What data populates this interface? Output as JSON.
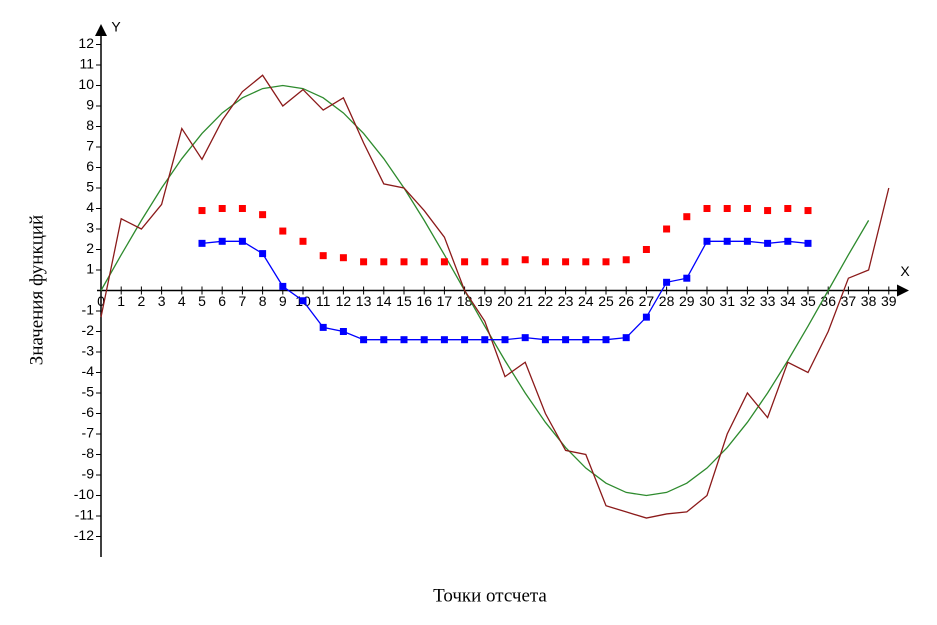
{
  "chart_data": {
    "type": "line",
    "x_label": "Точки отсчета",
    "y_label": "Значения функций",
    "x_axis_letter": "X",
    "y_axis_letter": "Y",
    "xlim": [
      0,
      40
    ],
    "ylim": [
      -13,
      13
    ],
    "xticks": [
      0,
      1,
      2,
      3,
      4,
      5,
      6,
      7,
      8,
      9,
      10,
      11,
      12,
      13,
      14,
      15,
      16,
      17,
      18,
      19,
      20,
      21,
      22,
      23,
      24,
      25,
      26,
      27,
      28,
      29,
      30,
      31,
      32,
      33,
      34,
      35,
      36,
      37,
      38,
      39
    ],
    "yticks": [
      -12,
      -11,
      -10,
      -9,
      -8,
      -7,
      -6,
      -5,
      -4,
      -3,
      -2,
      -1,
      1,
      2,
      3,
      4,
      5,
      6,
      7,
      8,
      9,
      10,
      11,
      12
    ],
    "series": [
      {
        "color": "#2e8b2e",
        "line": true,
        "marker": "none",
        "x": [
          0,
          1,
          2,
          3,
          4,
          5,
          6,
          7,
          8,
          9,
          10,
          11,
          12,
          13,
          14,
          15,
          16,
          17,
          18,
          19,
          20,
          21,
          22,
          23,
          24,
          25,
          26,
          27,
          28,
          29,
          30,
          31,
          32,
          33,
          34,
          35,
          36,
          37,
          38
        ],
        "values": [
          0,
          1.74,
          3.42,
          5,
          6.43,
          7.66,
          8.66,
          9.4,
          9.85,
          10,
          9.85,
          9.4,
          8.66,
          7.66,
          6.43,
          5,
          3.42,
          1.74,
          0,
          -1.74,
          -3.42,
          -5,
          -6.43,
          -7.66,
          -8.66,
          -9.4,
          -9.85,
          -10,
          -9.85,
          -9.4,
          -8.66,
          -7.66,
          -6.43,
          -5,
          -3.42,
          -1.74,
          0,
          1.74,
          3.42
        ]
      },
      {
        "color": "#8b1a1a",
        "line": true,
        "marker": "none",
        "x": [
          0,
          1,
          2,
          3,
          4,
          5,
          6,
          7,
          8,
          9,
          10,
          11,
          12,
          13,
          14,
          15,
          16,
          17,
          18,
          19,
          20,
          21,
          22,
          23,
          24,
          25,
          26,
          27,
          28,
          29,
          30,
          31,
          32,
          33,
          34,
          35,
          36,
          37,
          38,
          39
        ],
        "values": [
          -1.3,
          3.5,
          3.0,
          4.2,
          7.9,
          6.4,
          8.3,
          9.7,
          10.5,
          9.0,
          9.8,
          8.8,
          9.4,
          7.2,
          5.2,
          5.0,
          3.9,
          2.6,
          0,
          -1.5,
          -4.2,
          -3.5,
          -6.0,
          -7.8,
          -8.0,
          -10.5,
          -10.8,
          -11.1,
          -10.9,
          -10.8,
          -10.0,
          -7.0,
          -5.0,
          -6.2,
          -3.5,
          -4.0,
          -2.0,
          0.6,
          1.0,
          5.0
        ]
      },
      {
        "color": "#ff0000",
        "line": false,
        "marker": "square",
        "x": [
          5,
          6,
          7,
          8,
          9,
          10,
          11,
          12,
          13,
          14,
          15,
          16,
          17,
          18,
          19,
          20,
          21,
          22,
          23,
          24,
          25,
          26,
          27,
          28,
          29,
          30,
          31,
          32,
          33,
          34,
          35
        ],
        "values": [
          3.9,
          4.0,
          4.0,
          3.7,
          2.9,
          2.4,
          1.7,
          1.6,
          1.4,
          1.4,
          1.4,
          1.4,
          1.4,
          1.4,
          1.4,
          1.4,
          1.5,
          1.4,
          1.4,
          1.4,
          1.4,
          1.5,
          2.0,
          3.0,
          3.6,
          4.0,
          4.0,
          4.0,
          3.9,
          4.0,
          3.9
        ]
      },
      {
        "color": "#0000ff",
        "line": true,
        "marker": "square",
        "x": [
          5,
          6,
          7,
          8,
          9,
          10,
          11,
          12,
          13,
          14,
          15,
          16,
          17,
          18,
          19,
          20,
          21,
          22,
          23,
          24,
          25,
          26,
          27,
          28,
          29,
          30,
          31,
          32,
          33,
          34,
          35
        ],
        "values": [
          2.3,
          2.4,
          2.4,
          1.8,
          0.2,
          -0.5,
          -1.8,
          -2.0,
          -2.4,
          -2.4,
          -2.4,
          -2.4,
          -2.4,
          -2.4,
          -2.4,
          -2.4,
          -2.3,
          -2.4,
          -2.4,
          -2.4,
          -2.4,
          -2.3,
          -1.3,
          0.4,
          0.6,
          2.4,
          2.4,
          2.4,
          2.3,
          2.4,
          2.3
        ]
      }
    ]
  }
}
